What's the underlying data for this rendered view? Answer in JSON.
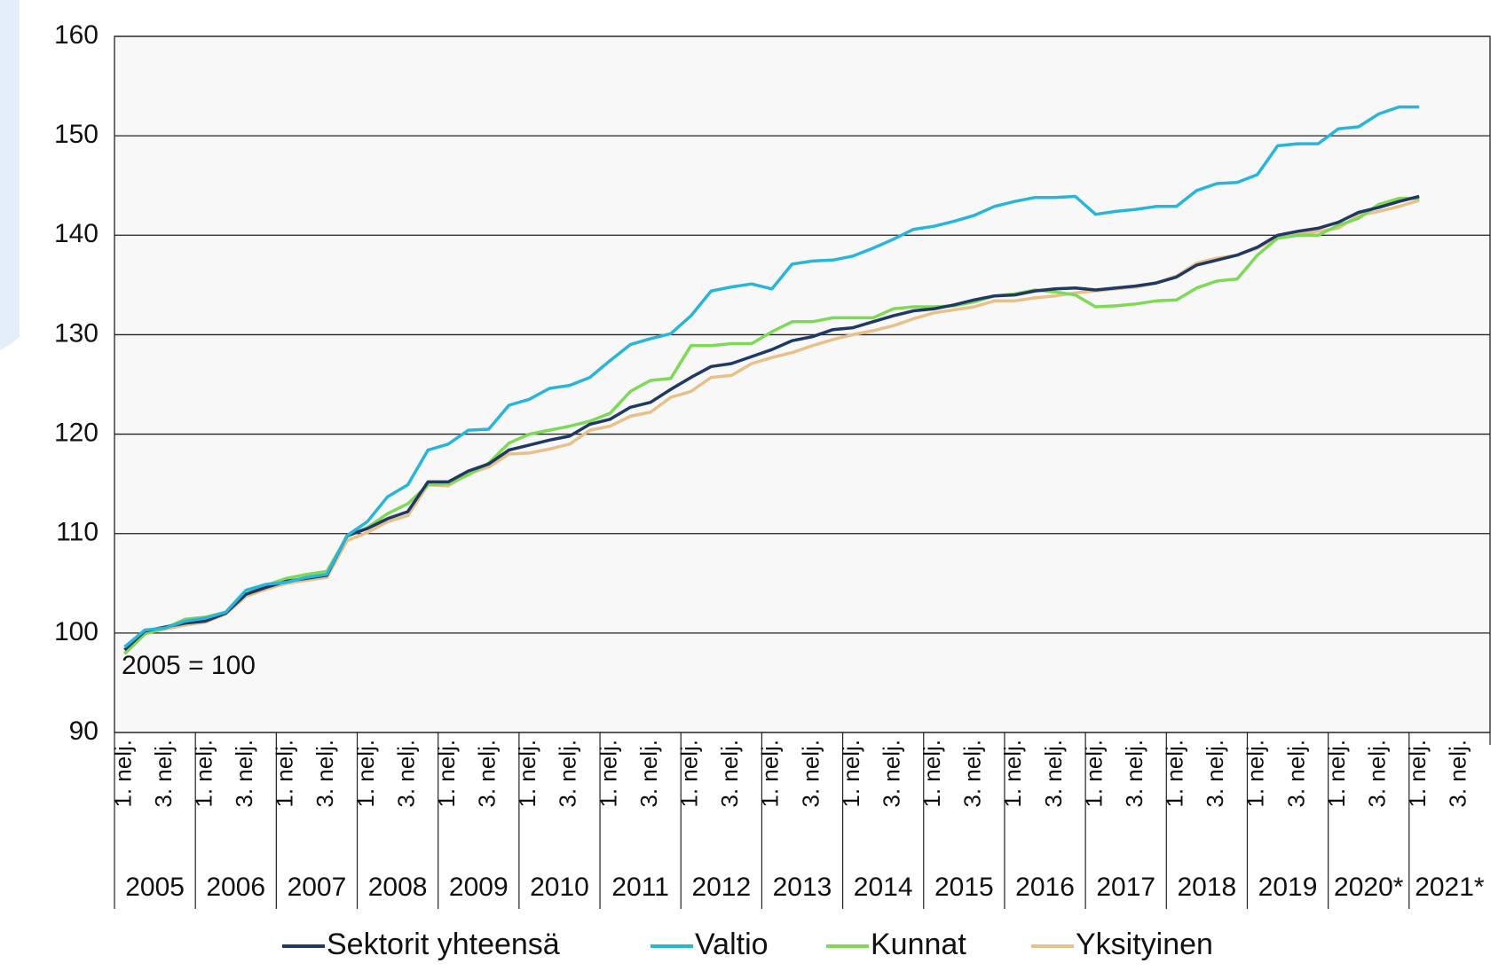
{
  "chart_data": {
    "type": "line",
    "annotation": "2005 = 100",
    "categories": [
      "1. nelj.",
      null,
      "3. nelj.",
      null,
      "1. nelj.",
      null,
      "3. nelj.",
      null,
      "1. nelj.",
      null,
      "3. nelj.",
      null,
      "1. nelj.",
      null,
      "3. nelj.",
      null,
      "1. nelj.",
      null,
      "3. nelj.",
      null,
      "1. nelj.",
      null,
      "3. nelj.",
      null,
      "1. nelj.",
      null,
      "3. nelj.",
      null,
      "1. nelj.",
      null,
      "3. nelj.",
      null,
      "1. nelj.",
      null,
      "3. nelj.",
      null,
      "1. nelj.",
      null,
      "3. nelj.",
      null,
      "1. nelj.",
      null,
      "3. nelj.",
      null,
      "1. nelj.",
      null,
      "3. nelj.",
      null,
      "1. nelj.",
      null,
      "3. nelj.",
      null,
      "1. nelj.",
      null,
      "3. nelj.",
      null,
      "1. nelj.",
      null,
      "3. nelj.",
      null,
      "1. nelj.",
      null,
      "3. nelj.",
      null,
      "1. nelj.",
      null,
      "3. nelj.",
      null
    ],
    "year_labels": [
      "2005",
      "2006",
      "2007",
      "2008",
      "2009",
      "2010",
      "2011",
      "2012",
      "2013",
      "2014",
      "2015",
      "2016",
      "2017",
      "2018",
      "2019",
      "2020*",
      "2021*"
    ],
    "ylim": [
      90,
      160
    ],
    "yticks": [
      90,
      100,
      110,
      120,
      130,
      140,
      150,
      160
    ],
    "grid": true,
    "series": [
      {
        "name": "Sektorit yhteensä",
        "color": "#1f3864",
        "values": [
          98.3,
          100.2,
          100.6,
          101.0,
          101.2,
          102.0,
          103.9,
          104.6,
          105.2,
          105.5,
          105.8,
          109.8,
          110.5,
          111.5,
          112.2,
          115.2,
          115.2,
          116.3,
          117.0,
          118.4,
          118.9,
          119.4,
          119.8,
          121.0,
          121.5,
          122.7,
          123.2,
          124.5,
          125.7,
          126.8,
          127.1,
          127.8,
          128.5,
          129.4,
          129.8,
          130.5,
          130.7,
          131.3,
          131.9,
          132.4,
          132.6,
          133.0,
          133.5,
          133.9,
          134.0,
          134.4,
          134.6,
          134.7,
          134.5,
          134.7,
          134.9,
          135.2,
          135.8,
          137.0,
          137.5,
          138.0,
          138.8,
          140.0,
          140.4,
          140.7,
          141.3,
          142.3,
          142.8,
          143.4,
          143.9,
          null,
          null,
          null
        ]
      },
      {
        "name": "Valtio",
        "color": "#29b5d9",
        "values": [
          98.6,
          100.3,
          100.5,
          101.2,
          101.5,
          102.1,
          104.3,
          104.9,
          105.1,
          105.6,
          105.9,
          109.8,
          111.2,
          113.7,
          114.9,
          118.4,
          119.0,
          120.4,
          120.5,
          122.9,
          123.5,
          124.6,
          124.9,
          125.7,
          127.4,
          129.0,
          129.6,
          130.1,
          131.9,
          134.4,
          134.8,
          135.1,
          134.6,
          137.1,
          137.4,
          137.5,
          137.9,
          138.7,
          139.6,
          140.6,
          140.9,
          141.4,
          142.0,
          142.9,
          143.4,
          143.8,
          143.8,
          143.9,
          142.1,
          142.4,
          142.6,
          142.9,
          142.9,
          144.5,
          145.2,
          145.3,
          146.1,
          149.0,
          149.2,
          149.2,
          150.7,
          150.9,
          152.2,
          152.9,
          152.9,
          null,
          null,
          null
        ]
      },
      {
        "name": "Kunnat",
        "color": "#7ed957",
        "values": [
          97.9,
          99.9,
          100.5,
          101.4,
          101.6,
          102.1,
          103.9,
          104.8,
          105.5,
          105.9,
          106.2,
          109.7,
          110.6,
          112.0,
          113.0,
          114.9,
          115.0,
          115.9,
          117.1,
          119.1,
          120.0,
          120.4,
          120.8,
          121.3,
          122.1,
          124.3,
          125.4,
          125.6,
          128.9,
          128.9,
          129.1,
          129.1,
          130.3,
          131.3,
          131.3,
          131.7,
          131.7,
          131.7,
          132.6,
          132.8,
          132.8,
          132.9,
          133.3,
          133.9,
          134.1,
          134.5,
          134.3,
          134.0,
          132.8,
          132.9,
          133.1,
          133.4,
          133.5,
          134.7,
          135.4,
          135.6,
          138.0,
          139.7,
          140.0,
          140.0,
          141.0,
          141.7,
          143.1,
          143.7,
          143.7,
          null,
          null,
          null
        ]
      },
      {
        "name": "Yksityinen",
        "color": "#e8c08a",
        "values": [
          98.0,
          100.0,
          100.4,
          100.8,
          101.1,
          101.9,
          103.7,
          104.4,
          105.0,
          105.3,
          105.6,
          109.3,
          110.1,
          111.2,
          111.8,
          114.9,
          114.8,
          116.0,
          116.7,
          118.0,
          118.1,
          118.5,
          119.0,
          120.4,
          120.8,
          121.8,
          122.2,
          123.7,
          124.3,
          125.7,
          125.9,
          127.1,
          127.7,
          128.2,
          128.9,
          129.5,
          130.0,
          130.4,
          130.9,
          131.6,
          132.2,
          132.5,
          132.8,
          133.4,
          133.4,
          133.7,
          133.9,
          134.2,
          134.4,
          134.6,
          134.8,
          135.2,
          135.9,
          137.2,
          137.7,
          138.0,
          138.7,
          139.8,
          140.1,
          140.4,
          140.7,
          142.0,
          142.4,
          142.9,
          143.5,
          null,
          null,
          null
        ]
      }
    ]
  }
}
